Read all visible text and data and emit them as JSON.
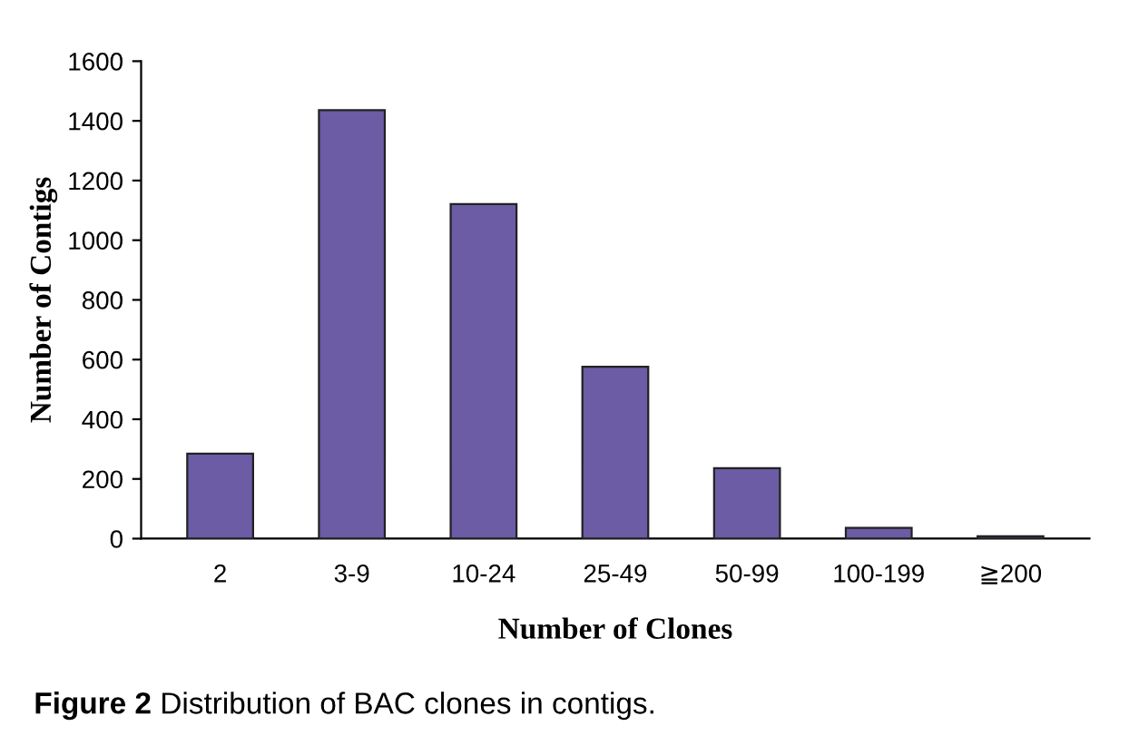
{
  "chart_data": {
    "type": "bar",
    "xlabel": "Number of Clones",
    "ylabel": "Number of Contigs",
    "categories": [
      "2",
      "3-9",
      "10-24",
      "25-49",
      "50-99",
      "100-199",
      "≧200"
    ],
    "values": [
      285,
      1436,
      1121,
      576,
      236,
      36,
      8
    ],
    "color": "#6b5ca5",
    "ylim": [
      0,
      1600
    ],
    "yticks": [
      0,
      200,
      400,
      600,
      800,
      1000,
      1200,
      1400,
      1600
    ],
    "grid": false,
    "legend": false,
    "annotations": [
      "Figure 2",
      "Distribution of BAC clones in contigs."
    ]
  }
}
